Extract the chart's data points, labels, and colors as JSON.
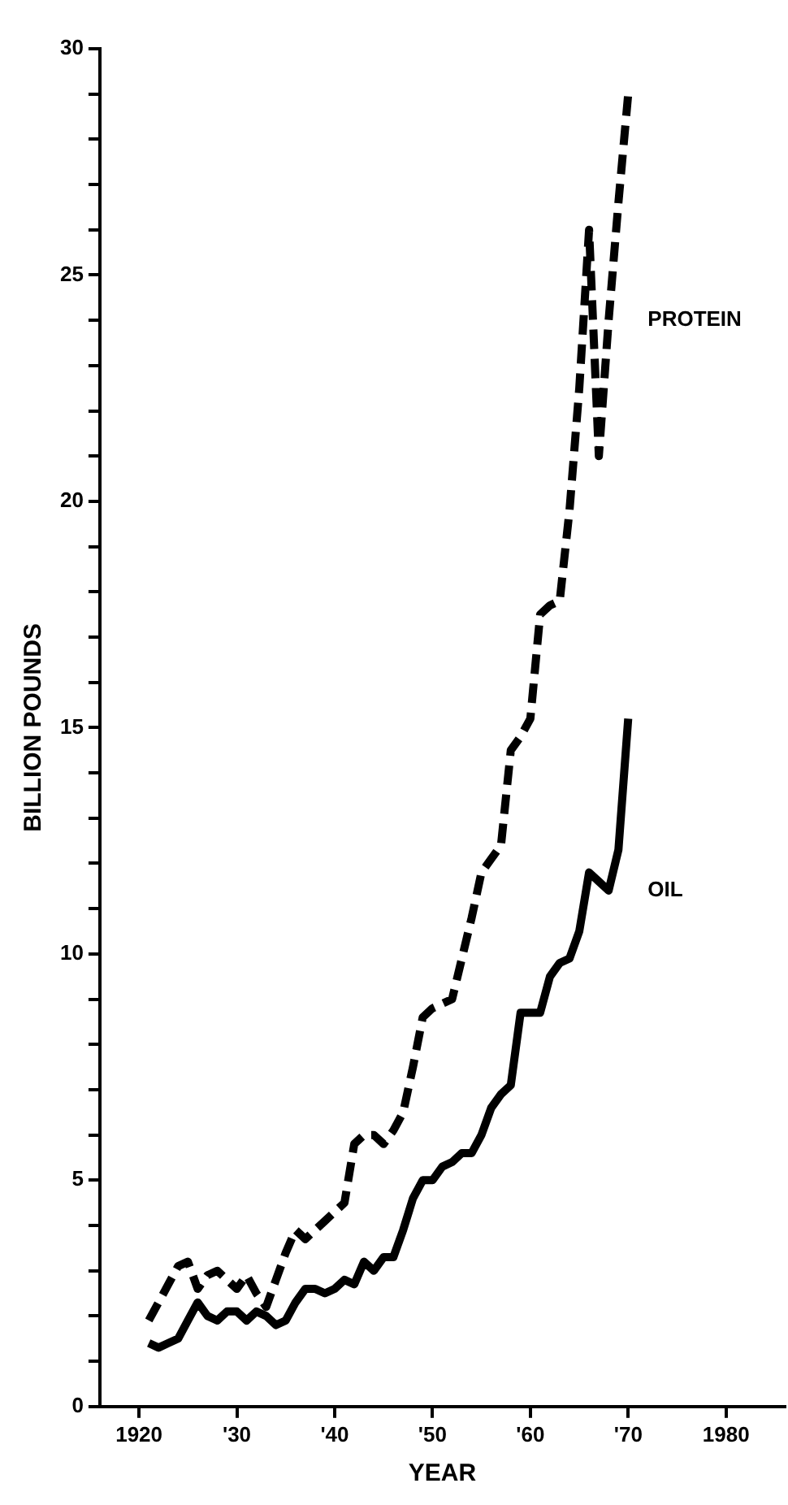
{
  "chart_data": {
    "type": "line",
    "xlabel": "YEAR",
    "ylabel": "BILLION POUNDS",
    "xlim": [
      1916,
      1986
    ],
    "xticks": [
      {
        "value": 1920,
        "label": "1920"
      },
      {
        "value": 1930,
        "label": "'30"
      },
      {
        "value": 1940,
        "label": "'40"
      },
      {
        "value": 1950,
        "label": "'50"
      },
      {
        "value": 1960,
        "label": "'60"
      },
      {
        "value": 1970,
        "label": "'70"
      },
      {
        "value": 1980,
        "label": "1980"
      }
    ],
    "ylim": [
      0,
      30
    ],
    "yticks": [
      0,
      {
        "value": 1,
        "label": null
      },
      {
        "value": 2,
        "label": null
      },
      {
        "value": 3,
        "label": null
      },
      {
        "value": 4,
        "label": null
      },
      5,
      {
        "value": 6,
        "label": null
      },
      {
        "value": 7,
        "label": null
      },
      {
        "value": 8,
        "label": null
      },
      {
        "value": 9,
        "label": null
      },
      10,
      {
        "value": 11,
        "label": null
      },
      {
        "value": 12,
        "label": null
      },
      {
        "value": 13,
        "label": null
      },
      {
        "value": 14,
        "label": null
      },
      15,
      {
        "value": 16,
        "label": null
      },
      {
        "value": 17,
        "label": null
      },
      {
        "value": 18,
        "label": null
      },
      {
        "value": 19,
        "label": null
      },
      20,
      {
        "value": 21,
        "label": null
      },
      {
        "value": 22,
        "label": null
      },
      {
        "value": 23,
        "label": null
      },
      {
        "value": 24,
        "label": null
      },
      25,
      {
        "value": 26,
        "label": null
      },
      {
        "value": 27,
        "label": null
      },
      {
        "value": 28,
        "label": null
      },
      {
        "value": 29,
        "label": null
      },
      30
    ],
    "x": [
      1921,
      1922,
      1923,
      1924,
      1925,
      1926,
      1927,
      1928,
      1929,
      1930,
      1931,
      1932,
      1933,
      1934,
      1935,
      1936,
      1937,
      1938,
      1939,
      1940,
      1941,
      1942,
      1943,
      1944,
      1945,
      1946,
      1947,
      1948,
      1949,
      1950,
      1951,
      1952,
      1953,
      1954,
      1955,
      1956,
      1957,
      1958,
      1959,
      1960,
      1961,
      1962,
      1963,
      1964,
      1965,
      1966,
      1967,
      1968,
      1969,
      1970
    ],
    "series": [
      {
        "name": "PROTEIN",
        "color": "#000000",
        "line_style": "dashed",
        "values": [
          1.9,
          2.3,
          2.7,
          3.1,
          3.2,
          2.6,
          2.9,
          3.0,
          2.8,
          2.6,
          2.9,
          2.5,
          2.2,
          2.8,
          3.4,
          3.9,
          3.7,
          3.9,
          4.1,
          4.3,
          4.5,
          5.8,
          6.0,
          6.0,
          5.8,
          6.1,
          6.5,
          7.5,
          8.6,
          8.8,
          8.9,
          9.0,
          9.9,
          10.8,
          11.8,
          12.1,
          12.4,
          14.5,
          14.8,
          15.2,
          17.5,
          17.7,
          17.8,
          19.8,
          22.5,
          26.0,
          21.0,
          24.0,
          26.6,
          29.0
        ]
      },
      {
        "name": "OIL",
        "color": "#000000",
        "line_style": "solid",
        "values": [
          1.4,
          1.3,
          1.4,
          1.5,
          1.9,
          2.3,
          2.0,
          1.9,
          2.1,
          2.1,
          1.9,
          2.1,
          2.0,
          1.8,
          1.9,
          2.3,
          2.6,
          2.6,
          2.5,
          2.6,
          2.8,
          2.7,
          3.2,
          3.0,
          3.3,
          3.3,
          3.9,
          4.6,
          5.0,
          5.0,
          5.3,
          5.4,
          5.6,
          5.6,
          6.0,
          6.6,
          6.9,
          7.1,
          8.7,
          8.7,
          8.7,
          9.5,
          9.8,
          9.9,
          10.5,
          11.8,
          11.6,
          11.4,
          12.3,
          15.2
        ]
      }
    ],
    "marker": "none",
    "legend": false,
    "grid": false
  }
}
